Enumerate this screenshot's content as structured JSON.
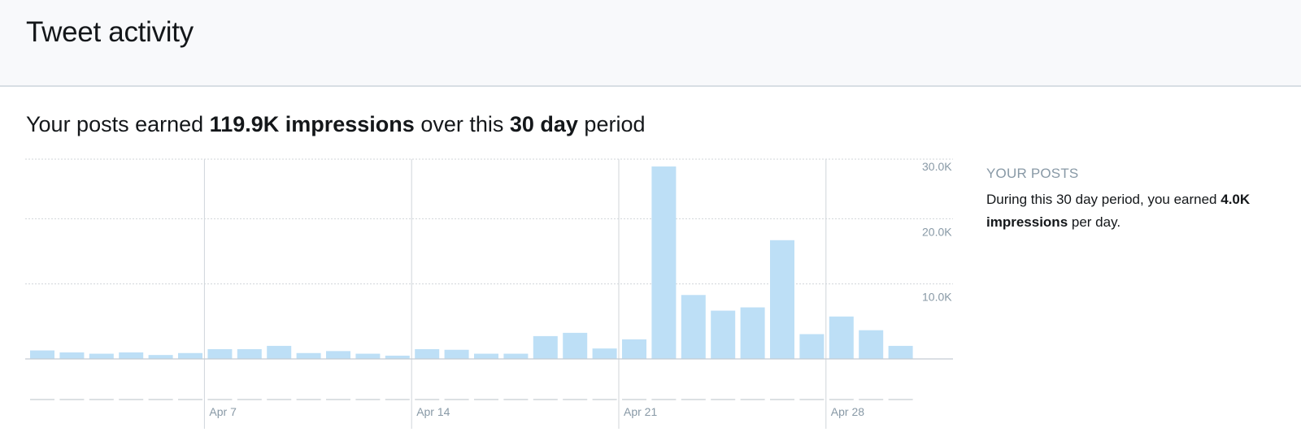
{
  "header": {
    "title": "Tweet activity"
  },
  "summary": {
    "prefix": "Your posts earned ",
    "impressions": "119.9K impressions",
    "middle": " over this ",
    "period": "30 day",
    "suffix": " period"
  },
  "sidebar": {
    "heading": "YOUR POSTS",
    "desc_prefix": "During this 30 day period, you earned ",
    "desc_value": "4.0K impressions",
    "desc_suffix": " per day."
  },
  "colors": {
    "bar": "#bddff6",
    "grid": "#d0d5da",
    "axis_text": "#8899a6"
  },
  "chart_data": {
    "type": "bar",
    "categories": [
      "Apr 1",
      "Apr 2",
      "Apr 3",
      "Apr 4",
      "Apr 5",
      "Apr 6",
      "Apr 7",
      "Apr 8",
      "Apr 9",
      "Apr 10",
      "Apr 11",
      "Apr 12",
      "Apr 13",
      "Apr 14",
      "Apr 15",
      "Apr 16",
      "Apr 17",
      "Apr 18",
      "Apr 19",
      "Apr 20",
      "Apr 21",
      "Apr 22",
      "Apr 23",
      "Apr 24",
      "Apr 25",
      "Apr 26",
      "Apr 27",
      "Apr 28",
      "Apr 29",
      "Apr 30"
    ],
    "values": [
      1300,
      1000,
      800,
      1000,
      600,
      900,
      1500,
      1500,
      2000,
      900,
      1200,
      800,
      500,
      1500,
      1400,
      800,
      800,
      3500,
      4000,
      1600,
      3000,
      29500,
      9800,
      7400,
      7900,
      18200,
      3800,
      6500,
      4400,
      2000
    ],
    "ylim": [
      0,
      30000
    ],
    "yticks": [
      10000,
      20000,
      30000
    ],
    "ytick_labels": [
      "10.0K",
      "20.0K",
      "30.0K"
    ],
    "xtick_labels": [
      {
        "label": "Apr 7",
        "index": 6
      },
      {
        "label": "Apr 14",
        "index": 13
      },
      {
        "label": "Apr 21",
        "index": 20
      },
      {
        "label": "Apr 28",
        "index": 27
      }
    ],
    "grid": true
  }
}
